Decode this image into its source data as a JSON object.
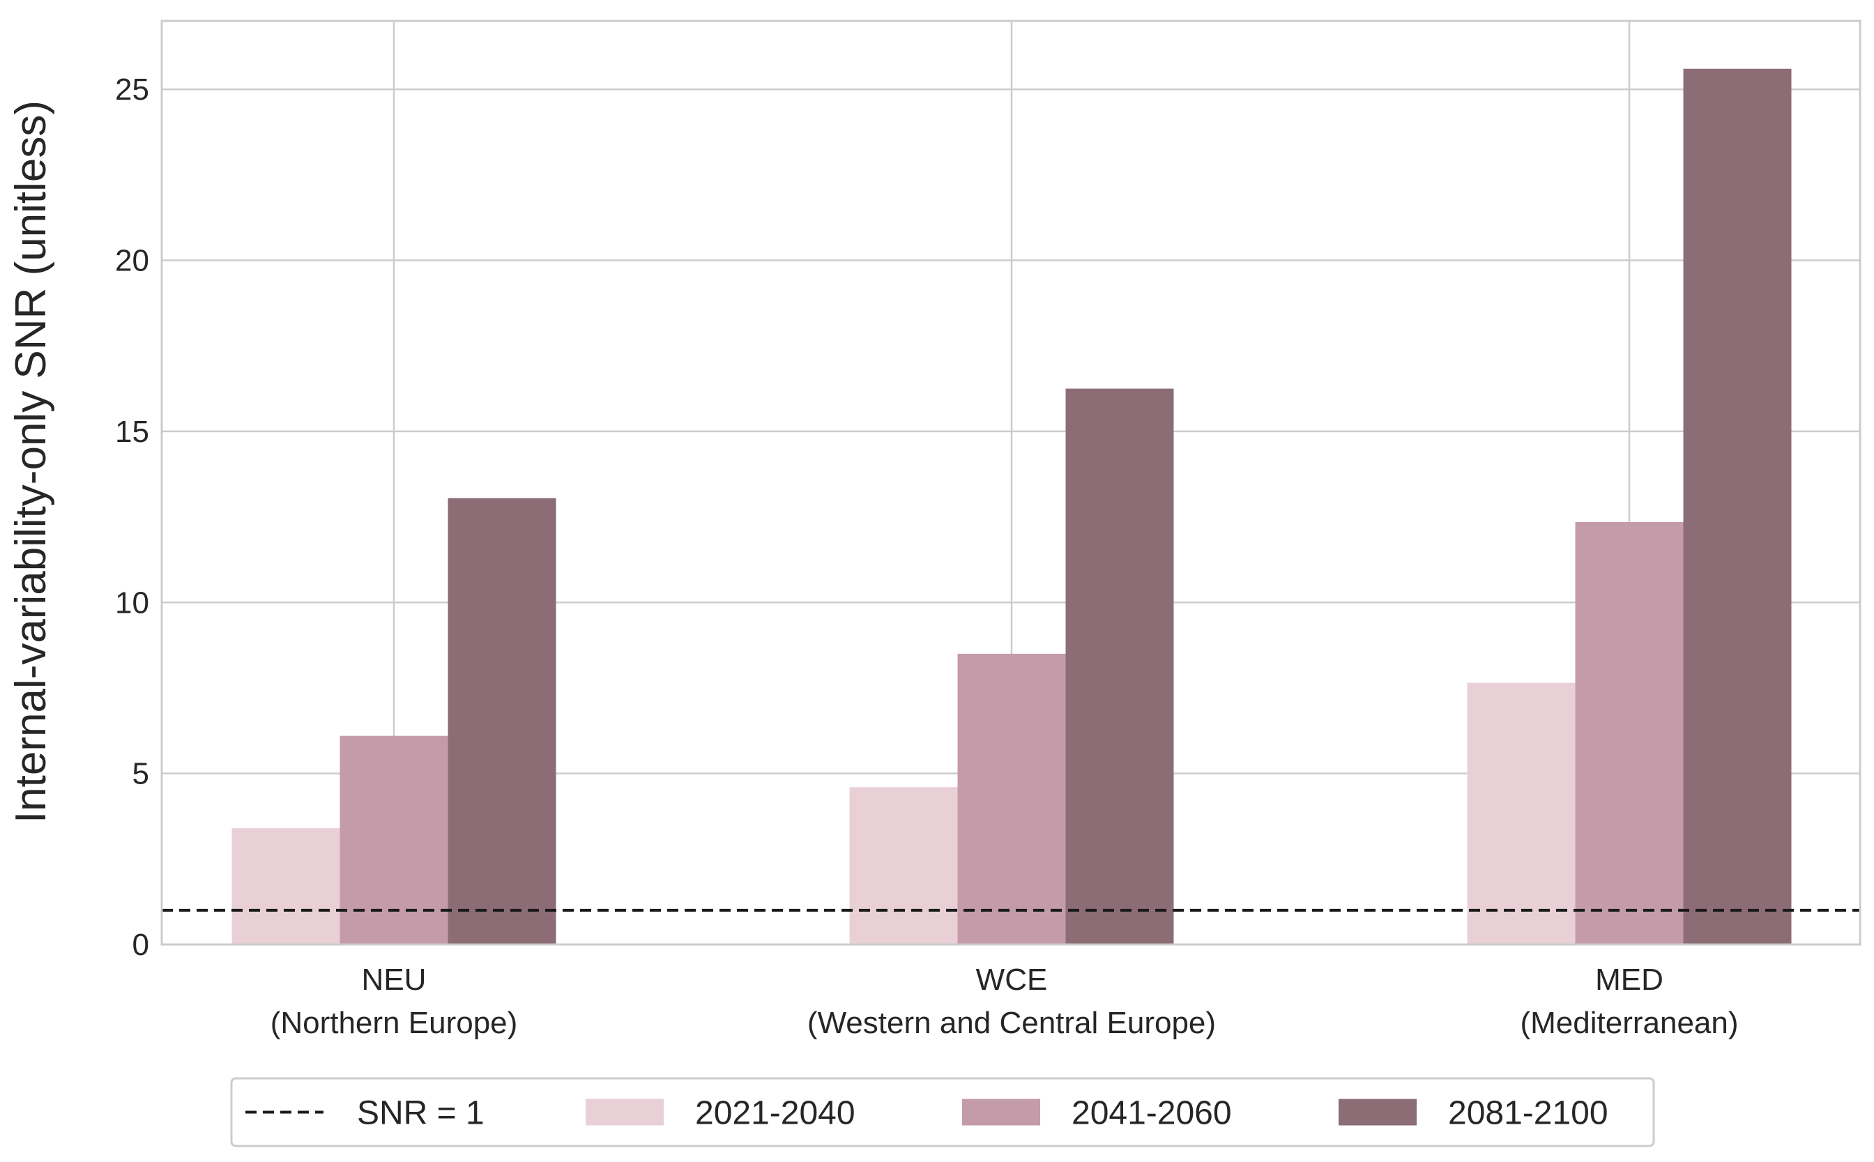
{
  "chart_data": {
    "type": "bar",
    "categories": [
      "NEU\n(Northern Europe)",
      "WCE\n(Western and Central Europe)",
      "MED\n(Mediterranean)"
    ],
    "series": [
      {
        "name": "2021-2040",
        "values": [
          3.4,
          4.6,
          7.65
        ]
      },
      {
        "name": "2041-2060",
        "values": [
          6.1,
          8.5,
          12.35
        ]
      },
      {
        "name": "2081-2100",
        "values": [
          13.05,
          16.25,
          25.6
        ]
      }
    ],
    "reference_line": {
      "y": 1,
      "label": "SNR = 1",
      "style": "dashed"
    },
    "ylabel": "Internal-variability-only SNR (unitless)",
    "xlabel": "",
    "title": "",
    "ylim": [
      0,
      27
    ],
    "yticks": [
      0,
      5,
      10,
      15,
      20,
      25
    ],
    "grid": true,
    "legend_position": "bottom-center",
    "colors": {
      "2021-2040": "#e8d0d6",
      "2041-2060": "#c49ba8",
      "2081-2100": "#8c6c75",
      "reference": "#1a1a1a",
      "grid": "#cccccc",
      "axes": "#cccccc"
    }
  }
}
